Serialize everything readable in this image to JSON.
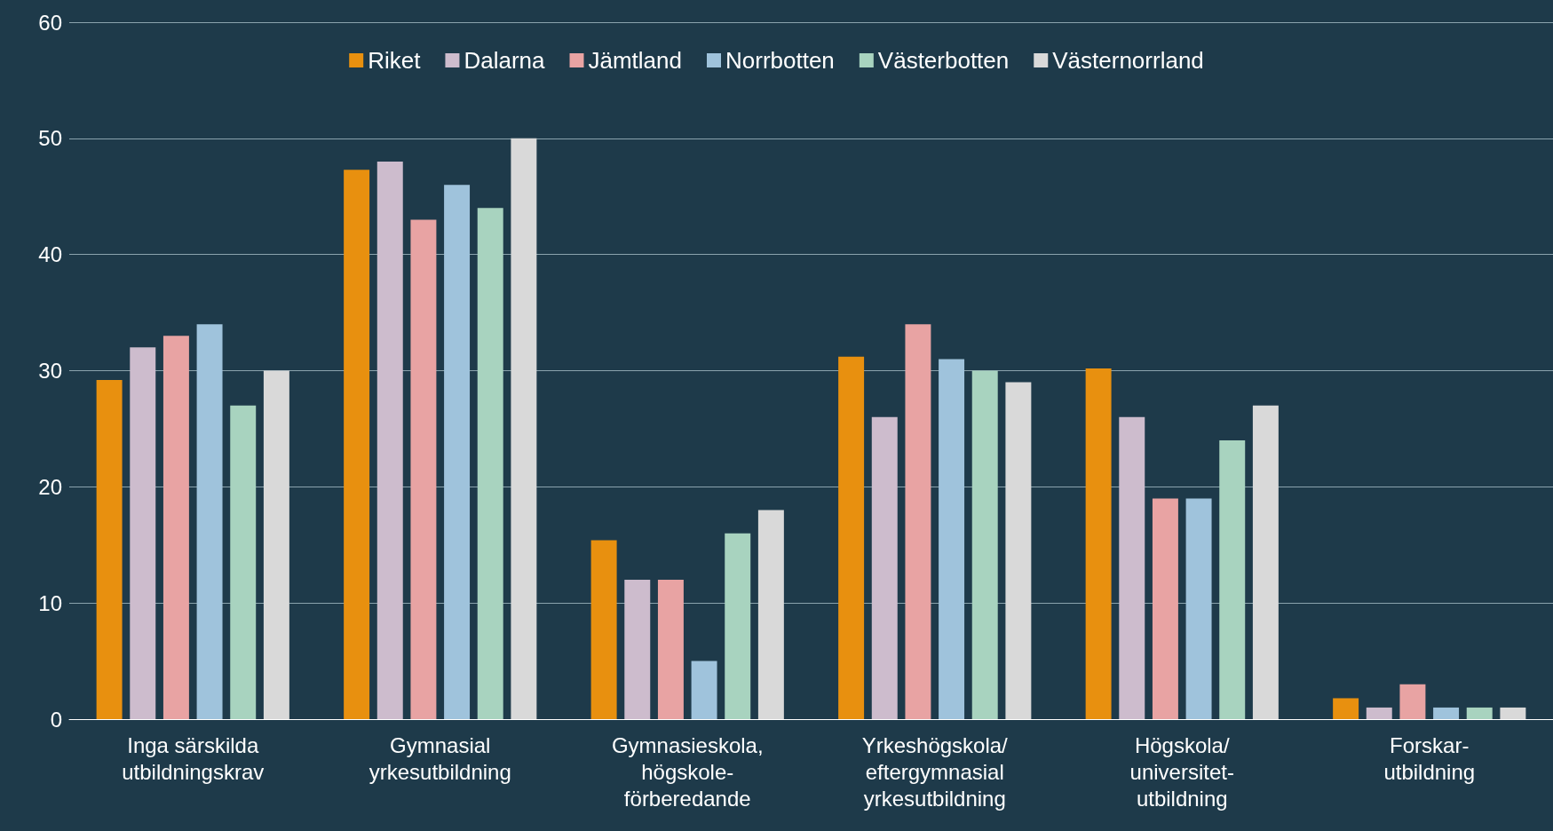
{
  "chart_data": {
    "type": "bar",
    "categories": [
      "Inga särskilda\nutbildningskrav",
      "Gymnasial\nyrkesutbildning",
      "Gymnasieskola,\nhögskole-\nförberedande",
      "Yrkeshögskola/\neftergymnasial\nyrkesutbildning",
      "Högskola/\nuniversitet-\nutbildning",
      "Forskar-\nutbildning"
    ],
    "series": [
      {
        "name": "Riket",
        "color": "#e8900f",
        "values": [
          29.2,
          47.3,
          15.4,
          31.2,
          30.2,
          1.8
        ]
      },
      {
        "name": "Dalarna",
        "color": "#cdbccd",
        "values": [
          32,
          48,
          12,
          26,
          26,
          1
        ]
      },
      {
        "name": "Jämtland",
        "color": "#e8a3a3",
        "values": [
          33,
          43,
          12,
          34,
          19,
          3
        ]
      },
      {
        "name": "Norrbotten",
        "color": "#9fc3dc",
        "values": [
          34,
          46,
          5,
          31,
          19,
          1
        ]
      },
      {
        "name": "Västerbotten",
        "color": "#a8d3bf",
        "values": [
          27,
          44,
          16,
          30,
          24,
          1
        ]
      },
      {
        "name": "Västernorrland",
        "color": "#d9d9d9",
        "values": [
          30,
          50,
          18,
          29,
          27,
          1
        ]
      }
    ],
    "ylim": [
      0,
      60
    ],
    "yticks": [
      0,
      10,
      20,
      30,
      40,
      50,
      60
    ],
    "grid": "y",
    "legend": "top"
  }
}
